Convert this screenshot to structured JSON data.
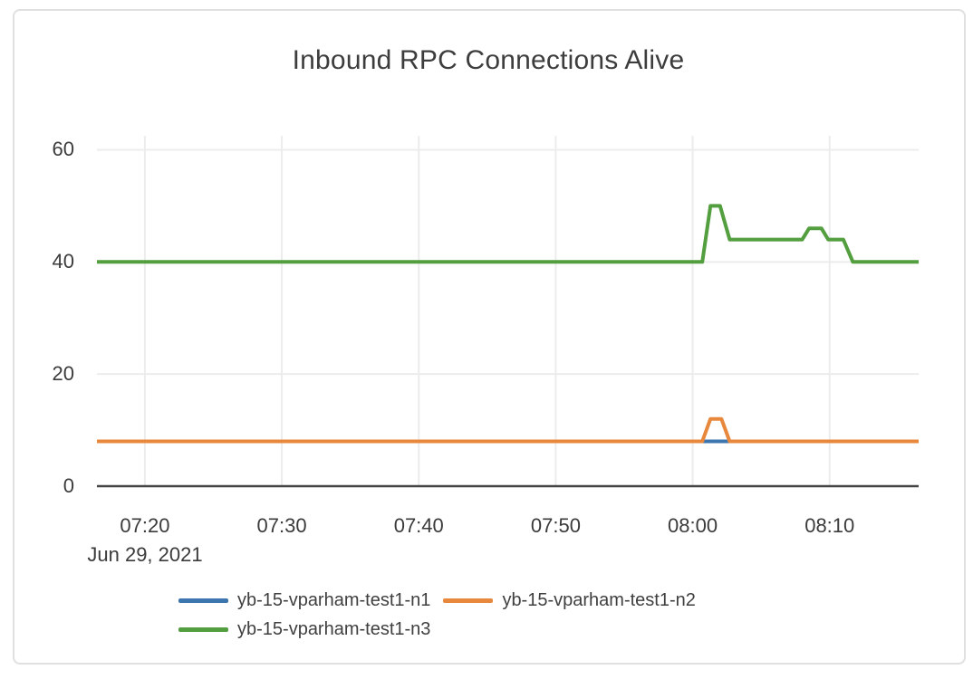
{
  "chart_data": {
    "type": "line",
    "title": "Inbound RPC Connections Alive",
    "x_axis": {
      "ticks": [
        "07:20",
        "07:30",
        "07:40",
        "07:50",
        "08:00",
        "08:10"
      ],
      "date_label": "Jun 29, 2021",
      "range": [
        "07:16:30",
        "08:16:30"
      ]
    },
    "y_axis": {
      "ticks": [
        0,
        20,
        40,
        60
      ],
      "range": [
        0,
        62.5
      ]
    },
    "grid": true,
    "legend_position": "bottom",
    "series": [
      {
        "name": "yb-15-vparham-test1-n1",
        "color": "#3d76ae",
        "points": [
          [
            "07:16:30",
            8
          ],
          [
            "08:16:30",
            8
          ]
        ]
      },
      {
        "name": "yb-15-vparham-test1-n2",
        "color": "#e8883c",
        "points": [
          [
            "07:16:30",
            8
          ],
          [
            "08:00:42",
            8
          ],
          [
            "08:01:18",
            12
          ],
          [
            "08:02:06",
            12
          ],
          [
            "08:02:42",
            8
          ],
          [
            "08:16:30",
            8
          ]
        ]
      },
      {
        "name": "yb-15-vparham-test1-n3",
        "color": "#539e3e",
        "points": [
          [
            "07:16:30",
            40
          ],
          [
            "08:00:42",
            40
          ],
          [
            "08:01:18",
            50
          ],
          [
            "08:02:00",
            50
          ],
          [
            "08:02:42",
            44
          ],
          [
            "08:08:00",
            44
          ],
          [
            "08:08:30",
            46
          ],
          [
            "08:09:24",
            46
          ],
          [
            "08:09:54",
            44
          ],
          [
            "08:11:00",
            44
          ],
          [
            "08:11:42",
            40
          ],
          [
            "08:16:30",
            40
          ]
        ]
      }
    ],
    "colors": {
      "grid": "#ececec",
      "axis": "#444444",
      "text": "#3b3b3b"
    }
  }
}
